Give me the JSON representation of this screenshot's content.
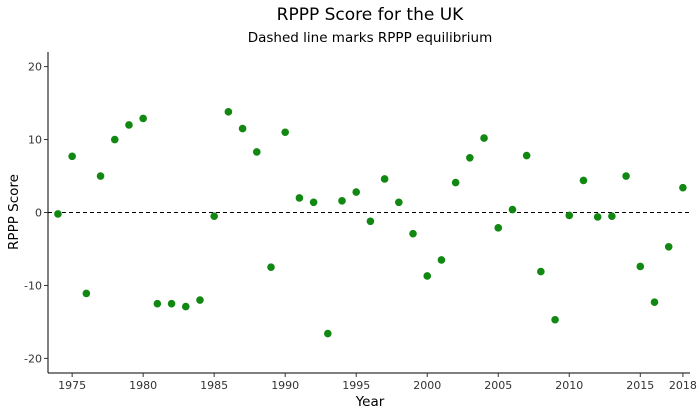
{
  "chart_data": {
    "type": "scatter",
    "title": "RPPP Score for the UK",
    "subtitle": "Dashed line marks RPPP equilibrium",
    "xlabel": "Year",
    "ylabel": "RPPP Score",
    "xlim": [
      1973.3,
      2018.5
    ],
    "ylim": [
      -22,
      22
    ],
    "x_ticks": [
      1975,
      1980,
      1985,
      1990,
      1995,
      2000,
      2005,
      2010,
      2015,
      2018
    ],
    "y_ticks": [
      -20,
      -10,
      0,
      10,
      20
    ],
    "reference_line": {
      "y": 0,
      "style": "dashed"
    },
    "point_color": "#118811",
    "grid": false,
    "legend": "none",
    "x": [
      1974,
      1975,
      1976,
      1977,
      1978,
      1979,
      1980,
      1981,
      1982,
      1983,
      1984,
      1985,
      1986,
      1987,
      1988,
      1989,
      1990,
      1991,
      1992,
      1993,
      1994,
      1995,
      1996,
      1997,
      1998,
      1999,
      2000,
      2001,
      2002,
      2003,
      2004,
      2005,
      2006,
      2007,
      2008,
      2009,
      2010,
      2011,
      2012,
      2013,
      2014,
      2015,
      2016,
      2017,
      2018
    ],
    "y": [
      -0.2,
      7.7,
      -11.1,
      5.0,
      10.0,
      12.0,
      12.9,
      -12.5,
      -12.5,
      -12.9,
      -12.0,
      -0.5,
      13.8,
      11.5,
      8.3,
      -7.5,
      11.0,
      2.0,
      1.4,
      -16.6,
      1.6,
      2.8,
      -1.2,
      4.6,
      1.4,
      -2.9,
      -8.7,
      -6.5,
      4.1,
      7.5,
      10.2,
      -2.1,
      0.4,
      7.8,
      -8.1,
      -14.7,
      -0.4,
      4.4,
      -0.6,
      -0.5,
      5.0,
      -7.4,
      -12.3,
      -4.7,
      3.4
    ]
  }
}
